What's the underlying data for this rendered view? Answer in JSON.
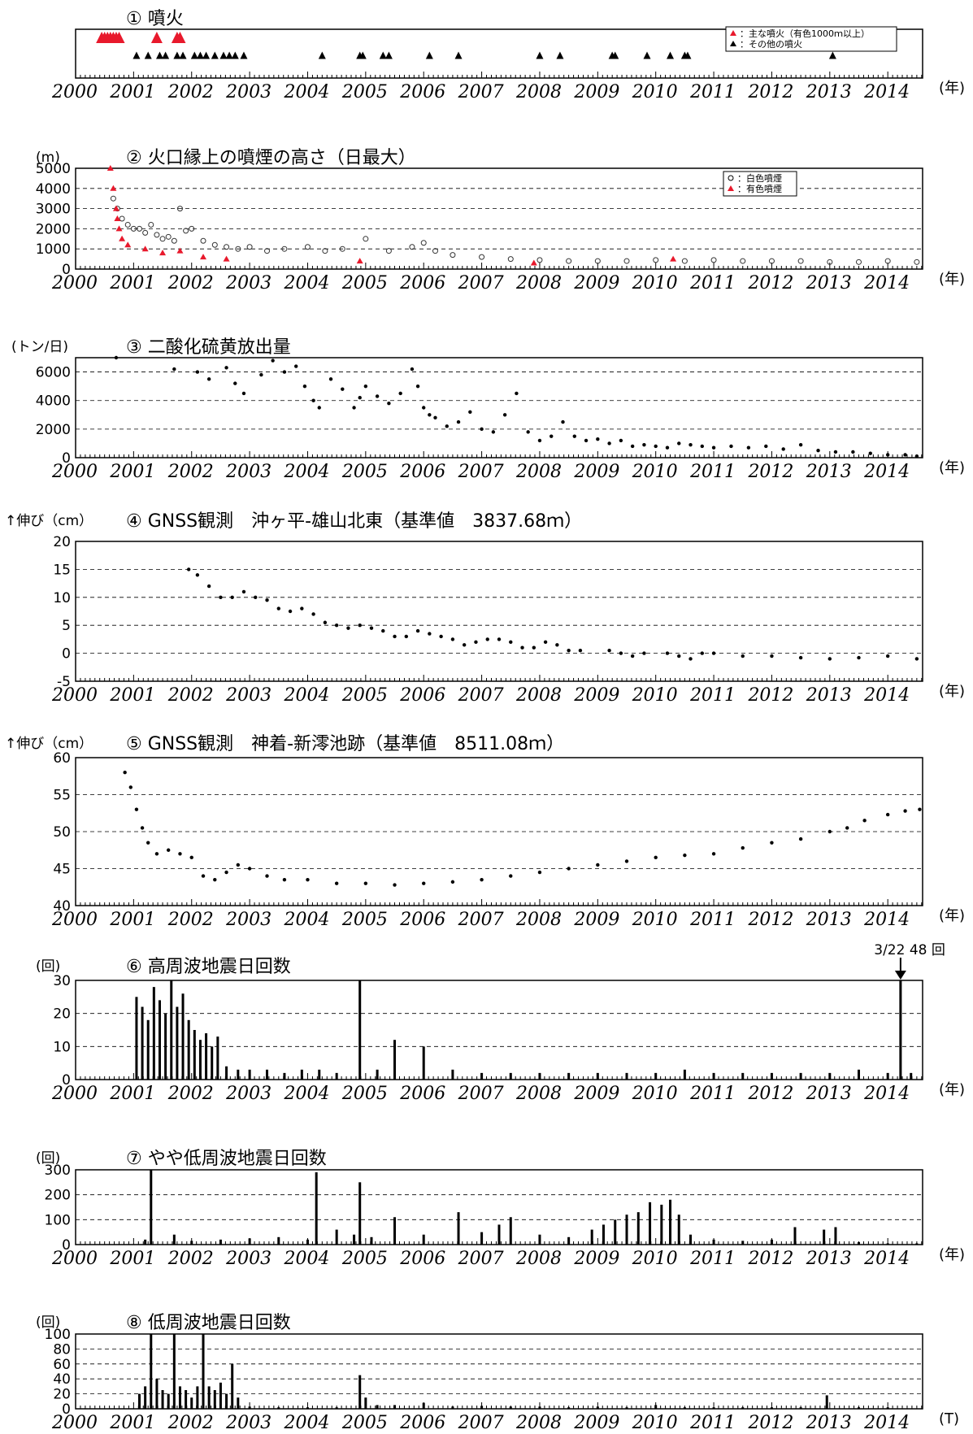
{
  "figure": {
    "x_unit_label": "(年)",
    "x_unit_label_last": "(T)"
  },
  "chart_data": [
    {
      "id": "eruptions",
      "type": "scatter",
      "title": "① 噴火",
      "xlim": [
        2000,
        2014.6
      ],
      "xticks": [
        "2000",
        "2001",
        "2002",
        "2003",
        "2004",
        "2005",
        "2006",
        "2007",
        "2008",
        "2009",
        "2010",
        "2011",
        "2012",
        "2013",
        "2014"
      ],
      "legend": [
        "：主な噴火（有色1000ｍ以上）",
        "：その他の噴火"
      ],
      "legend_position": "top-right",
      "series": [
        {
          "name": "：主な噴火（有色1000ｍ以上）",
          "color": "#e8192c",
          "x": [
            2000.45,
            2000.5,
            2000.55,
            2000.6,
            2000.65,
            2000.7,
            2000.75,
            2001.4,
            2001.75,
            2001.8
          ]
        },
        {
          "name": "：その他の噴火",
          "color": "#000000",
          "x": [
            2001.05,
            2001.25,
            2001.45,
            2001.55,
            2001.75,
            2001.85,
            2002.05,
            2002.15,
            2002.25,
            2002.4,
            2002.55,
            2002.65,
            2002.75,
            2002.9,
            2004.25,
            2004.9,
            2004.95,
            2005.3,
            2005.4,
            2006.1,
            2006.6,
            2008.0,
            2008.35,
            2009.25,
            2009.3,
            2009.85,
            2010.25,
            2010.5,
            2010.55,
            2013.05
          ]
        }
      ]
    },
    {
      "id": "plume",
      "type": "scatter",
      "title": "② 火口縁上の噴煙の高さ（日最大）",
      "ylabel": "(m)",
      "xlim": [
        2000,
        2014.6
      ],
      "ylim": [
        0,
        5000
      ],
      "yticks": [
        0,
        1000,
        2000,
        3000,
        4000,
        5000
      ],
      "xticks": [
        "2000",
        "2001",
        "2002",
        "2003",
        "2004",
        "2005",
        "2006",
        "2007",
        "2008",
        "2009",
        "2010",
        "2011",
        "2012",
        "2013",
        "2014"
      ],
      "legend": [
        "：白色噴煙",
        "：有色噴煙"
      ],
      "legend_position": "top-right",
      "series": [
        {
          "name": "：白色噴煙",
          "color": "#000000",
          "x": [
            2000.65,
            2000.72,
            2000.8,
            2000.9,
            2001.0,
            2001.1,
            2001.2,
            2001.3,
            2001.4,
            2001.5,
            2001.6,
            2001.7,
            2001.8,
            2001.9,
            2002.0,
            2002.2,
            2002.4,
            2002.6,
            2002.8,
            2003.0,
            2003.3,
            2003.6,
            2004.0,
            2004.3,
            2004.6,
            2005.0,
            2005.4,
            2005.8,
            2006.0,
            2006.2,
            2006.5,
            2007.0,
            2007.5,
            2008.0,
            2008.5,
            2009.0,
            2009.5,
            2010.0,
            2010.5,
            2011.0,
            2011.5,
            2012.0,
            2012.5,
            2013.0,
            2013.5,
            2014.0,
            2014.5
          ],
          "y": [
            3500,
            3000,
            2500,
            2200,
            2000,
            2000,
            1800,
            2200,
            1700,
            1500,
            1600,
            1400,
            3000,
            1900,
            2000,
            1400,
            1200,
            1100,
            1000,
            1100,
            900,
            1000,
            1100,
            900,
            1000,
            1500,
            900,
            1100,
            1300,
            900,
            700,
            600,
            500,
            450,
            400,
            400,
            400,
            450,
            400,
            450,
            400,
            400,
            400,
            350,
            350,
            400,
            350
          ]
        },
        {
          "name": "：有色噴煙",
          "color": "#e8192c",
          "x": [
            2000.6,
            2000.65,
            2000.7,
            2000.72,
            2000.75,
            2000.8,
            2000.9,
            2001.2,
            2001.5,
            2001.8,
            2002.2,
            2002.6,
            2004.9,
            2007.9,
            2010.3
          ],
          "y": [
            5000,
            4000,
            3000,
            2500,
            2000,
            1500,
            1200,
            1000,
            800,
            900,
            600,
            500,
            400,
            300,
            500
          ]
        }
      ]
    },
    {
      "id": "so2",
      "type": "scatter",
      "title": "③ 二酸化硫黄放出量",
      "ylabel": "(トン/日)",
      "xlim": [
        2000,
        2014.6
      ],
      "ylim": [
        0,
        7000
      ],
      "yticks": [
        0,
        2000,
        4000,
        6000
      ],
      "xticks": [
        "2000",
        "2001",
        "2002",
        "2003",
        "2004",
        "2005",
        "2006",
        "2007",
        "2008",
        "2009",
        "2010",
        "2011",
        "2012",
        "2013",
        "2014"
      ],
      "series": [
        {
          "name": "",
          "color": "#000000",
          "x": [
            2000.7,
            2001.7,
            2002.1,
            2002.3,
            2002.6,
            2002.75,
            2002.9,
            2003.2,
            2003.4,
            2003.6,
            2003.8,
            2003.95,
            2004.1,
            2004.2,
            2004.4,
            2004.6,
            2004.8,
            2004.9,
            2005.0,
            2005.2,
            2005.4,
            2005.6,
            2005.8,
            2005.9,
            2006.0,
            2006.1,
            2006.2,
            2006.4,
            2006.6,
            2006.8,
            2007.0,
            2007.2,
            2007.4,
            2007.6,
            2007.8,
            2008.0,
            2008.2,
            2008.4,
            2008.6,
            2008.8,
            2009.0,
            2009.2,
            2009.4,
            2009.6,
            2009.8,
            2010.0,
            2010.2,
            2010.4,
            2010.6,
            2010.8,
            2011.0,
            2011.3,
            2011.6,
            2011.9,
            2012.2,
            2012.5,
            2012.8,
            2013.1,
            2013.4,
            2013.7,
            2014.0,
            2014.3,
            2014.5
          ],
          "y": [
            7000,
            6200,
            6000,
            5500,
            6300,
            5200,
            4500,
            5800,
            6800,
            6000,
            6400,
            5000,
            4000,
            3500,
            5500,
            4800,
            3500,
            4200,
            5000,
            4300,
            3800,
            4500,
            6200,
            5000,
            3500,
            3000,
            2800,
            2200,
            2500,
            3200,
            2000,
            1800,
            3000,
            4500,
            1800,
            1200,
            1500,
            2500,
            1500,
            1200,
            1300,
            1000,
            1200,
            800,
            900,
            800,
            700,
            1000,
            900,
            800,
            700,
            800,
            700,
            800,
            600,
            900,
            500,
            400,
            400,
            300,
            200,
            200,
            100
          ]
        }
      ]
    },
    {
      "id": "gnss1",
      "type": "scatter",
      "title": "④ GNSS観測　沖ヶ平-雄山北東（基準値　3837.68ｍ）",
      "ylabel": "↑伸び（cm）",
      "xlim": [
        2000,
        2014.6
      ],
      "ylim": [
        -5,
        20
      ],
      "yticks": [
        -5,
        0,
        5,
        10,
        15,
        20
      ],
      "xticks": [
        "2000",
        "2001",
        "2002",
        "2003",
        "2004",
        "2005",
        "2006",
        "2007",
        "2008",
        "2009",
        "2010",
        "2011",
        "2012",
        "2013",
        "2014"
      ],
      "series": [
        {
          "name": "",
          "color": "#000000",
          "x": [
            2001.95,
            2002.1,
            2002.3,
            2002.5,
            2002.7,
            2002.9,
            2003.1,
            2003.3,
            2003.5,
            2003.7,
            2003.9,
            2004.1,
            2004.3,
            2004.5,
            2004.7,
            2004.9,
            2005.1,
            2005.3,
            2005.5,
            2005.7,
            2005.9,
            2006.1,
            2006.3,
            2006.5,
            2006.7,
            2006.9,
            2007.1,
            2007.3,
            2007.5,
            2007.7,
            2007.9,
            2008.1,
            2008.3,
            2008.5,
            2008.7,
            2009.2,
            2009.4,
            2009.6,
            2009.8,
            2010.2,
            2010.4,
            2010.6,
            2010.8,
            2011.0,
            2011.5,
            2012.0,
            2012.5,
            2013.0,
            2013.5,
            2014.0,
            2014.5
          ],
          "y": [
            15,
            14,
            12,
            10,
            10,
            11,
            10,
            9.5,
            8,
            7.5,
            8,
            7,
            5.5,
            5,
            4.5,
            5,
            4.5,
            4,
            3,
            3,
            4,
            3.5,
            3,
            2.5,
            1.5,
            2,
            2.5,
            2.5,
            2,
            1,
            1,
            2,
            1.5,
            0.5,
            0.5,
            0.5,
            0,
            -0.5,
            0,
            0,
            -0.5,
            -1,
            0,
            0,
            -0.5,
            -0.5,
            -0.8,
            -1,
            -0.8,
            -0.5,
            -1
          ]
        }
      ]
    },
    {
      "id": "gnss2",
      "type": "scatter",
      "title": "⑤ GNSS観測　神着-新澪池跡（基準値　8511.08ｍ）",
      "ylabel": "↑伸び（cm）",
      "xlim": [
        2000,
        2014.6
      ],
      "ylim": [
        40,
        60
      ],
      "yticks": [
        40,
        45,
        50,
        55,
        60
      ],
      "xticks": [
        "2000",
        "2001",
        "2002",
        "2003",
        "2004",
        "2005",
        "2006",
        "2007",
        "2008",
        "2009",
        "2010",
        "2011",
        "2012",
        "2013",
        "2014"
      ],
      "series": [
        {
          "name": "",
          "color": "#000000",
          "x": [
            2000.85,
            2000.95,
            2001.05,
            2001.15,
            2001.25,
            2001.4,
            2001.6,
            2001.8,
            2002.0,
            2002.2,
            2002.4,
            2002.6,
            2002.8,
            2003.0,
            2003.3,
            2003.6,
            2004.0,
            2004.5,
            2005.0,
            2005.5,
            2006.0,
            2006.5,
            2007.0,
            2007.5,
            2008.0,
            2008.5,
            2009.0,
            2009.5,
            2010.0,
            2010.5,
            2011.0,
            2011.5,
            2012.0,
            2012.5,
            2013.0,
            2013.3,
            2013.6,
            2014.0,
            2014.3,
            2014.55
          ],
          "y": [
            58,
            56,
            53,
            50.5,
            48.5,
            47,
            47.5,
            47,
            46.5,
            44,
            43.5,
            44.5,
            45.5,
            45,
            44,
            43.5,
            43.5,
            43,
            43,
            42.8,
            43,
            43.2,
            43.5,
            44,
            44.5,
            45,
            45.5,
            46,
            46.5,
            46.8,
            47,
            47.8,
            48.5,
            49,
            50,
            50.5,
            51.5,
            52.3,
            52.8,
            53
          ]
        }
      ]
    },
    {
      "id": "hf_eq",
      "type": "bar",
      "title": "⑥ 高周波地震日回数",
      "ylabel": "(回)",
      "annotation": "3/22  48 回",
      "xlim": [
        2000,
        2014.6
      ],
      "ylim": [
        0,
        30
      ],
      "yticks": [
        0,
        10,
        20,
        30
      ],
      "xticks": [
        "2000",
        "2001",
        "2002",
        "2003",
        "2004",
        "2005",
        "2006",
        "2007",
        "2008",
        "2009",
        "2010",
        "2011",
        "2012",
        "2013",
        "2014"
      ],
      "series": [
        {
          "name": "",
          "color": "#000000",
          "x": [
            2001.05,
            2001.15,
            2001.25,
            2001.35,
            2001.45,
            2001.55,
            2001.65,
            2001.75,
            2001.85,
            2001.95,
            2002.05,
            2002.15,
            2002.25,
            2002.35,
            2002.45,
            2002.6,
            2002.8,
            2003.0,
            2003.3,
            2003.6,
            2003.9,
            2004.2,
            2004.5,
            2004.9,
            2005.2,
            2005.5,
            2006.0,
            2006.5,
            2007.0,
            2007.5,
            2008.0,
            2008.5,
            2009.0,
            2009.5,
            2010.0,
            2010.5,
            2011.0,
            2011.5,
            2012.0,
            2012.5,
            2013.0,
            2013.5,
            2014.0,
            2014.22,
            2014.4
          ],
          "y": [
            25,
            22,
            18,
            28,
            24,
            20,
            30,
            22,
            26,
            18,
            15,
            12,
            14,
            10,
            13,
            4,
            3,
            3,
            3,
            2,
            3,
            3,
            2,
            30,
            3,
            12,
            10,
            3,
            2,
            2,
            2,
            2,
            2,
            2,
            2,
            3,
            2,
            2,
            2,
            2,
            2,
            3,
            2,
            30,
            2
          ]
        }
      ]
    },
    {
      "id": "mlf_eq",
      "type": "bar",
      "title": "⑦ やや低周波地震日回数",
      "ylabel": "(回)",
      "xlim": [
        2000,
        2014.6
      ],
      "ylim": [
        0,
        300
      ],
      "yticks": [
        0,
        100,
        200,
        300
      ],
      "xticks": [
        "2000",
        "2001",
        "2002",
        "2003",
        "2004",
        "2005",
        "2006",
        "2007",
        "2008",
        "2009",
        "2010",
        "2011",
        "2012",
        "2013",
        "2014"
      ],
      "series": [
        {
          "name": "",
          "color": "#000000",
          "x": [
            2001.2,
            2001.3,
            2001.7,
            2002.0,
            2002.5,
            2003.0,
            2003.5,
            2004.0,
            2004.15,
            2004.5,
            2004.8,
            2004.9,
            2005.1,
            2005.5,
            2006.0,
            2006.6,
            2007.0,
            2007.3,
            2007.5,
            2008.0,
            2008.5,
            2008.9,
            2009.1,
            2009.3,
            2009.5,
            2009.7,
            2009.9,
            2010.1,
            2010.25,
            2010.4,
            2010.6,
            2011.0,
            2011.5,
            2012.0,
            2012.4,
            2012.9,
            2013.1,
            2013.5,
            2014.0,
            2014.5
          ],
          "y": [
            20,
            300,
            40,
            15,
            20,
            25,
            30,
            20,
            290,
            60,
            40,
            250,
            30,
            110,
            40,
            130,
            50,
            80,
            110,
            40,
            30,
            60,
            80,
            100,
            120,
            130,
            170,
            160,
            180,
            120,
            40,
            20,
            15,
            20,
            70,
            60,
            70,
            10,
            5,
            5
          ]
        }
      ]
    },
    {
      "id": "lf_eq",
      "type": "bar",
      "title": "⑧ 低周波地震日回数",
      "ylabel": "(回)",
      "xlim": [
        2000,
        2014.6
      ],
      "ylim": [
        0,
        100
      ],
      "yticks": [
        0,
        20,
        40,
        60,
        80,
        100
      ],
      "xticks": [
        "2000",
        "2001",
        "2002",
        "2003",
        "2004",
        "2005",
        "2006",
        "2007",
        "2008",
        "2009",
        "2010",
        "2011",
        "2012",
        "2013",
        "2014"
      ],
      "series": [
        {
          "name": "",
          "color": "#000000",
          "x": [
            2001.1,
            2001.2,
            2001.3,
            2001.4,
            2001.5,
            2001.6,
            2001.7,
            2001.8,
            2001.9,
            2002.0,
            2002.1,
            2002.2,
            2002.3,
            2002.4,
            2002.5,
            2002.6,
            2002.7,
            2002.8,
            2003.0,
            2003.5,
            2004.0,
            2004.5,
            2004.9,
            2005.0,
            2005.2,
            2005.5,
            2006.0,
            2006.5,
            2007.0,
            2007.5,
            2008.0,
            2008.5,
            2009.0,
            2009.5,
            2010.0,
            2010.5,
            2011.0,
            2011.5,
            2012.0,
            2012.5,
            2012.95,
            2013.5,
            2014.0
          ],
          "y": [
            20,
            30,
            100,
            40,
            25,
            20,
            100,
            30,
            25,
            15,
            30,
            100,
            30,
            25,
            35,
            20,
            60,
            15,
            3,
            2,
            2,
            2,
            45,
            15,
            5,
            5,
            8,
            3,
            4,
            3,
            3,
            2,
            3,
            2,
            5,
            2,
            2,
            2,
            2,
            2,
            18,
            2,
            2
          ]
        }
      ]
    }
  ]
}
